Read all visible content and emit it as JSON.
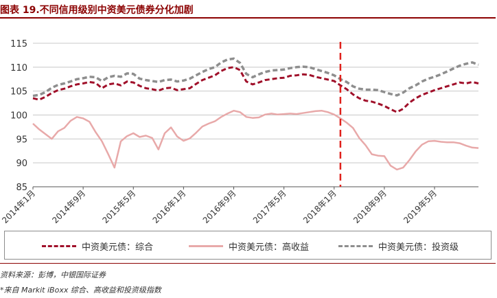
{
  "header": {
    "title": "图表 19.不同信用级别中资美元债券分化加剧"
  },
  "colors": {
    "composite": "#a0102a",
    "high_yield": "#e8a9a9",
    "investment_grade": "#8e8e8e",
    "marker": "#e0211c",
    "title": "#8b0000"
  },
  "chart_data": {
    "type": "line",
    "title": "",
    "xlabel": "",
    "ylabel": "",
    "ylim": [
      85,
      115
    ],
    "yticks": [
      85,
      90,
      95,
      100,
      105,
      110,
      115
    ],
    "xlim": [
      "2014-01",
      "2019-12"
    ],
    "xticks": [
      "2014年1月",
      "2014年9月",
      "2015年5月",
      "2016年1月",
      "2016年9月",
      "2017年5月",
      "2018年1月",
      "2018年9月",
      "2019年5月"
    ],
    "grid": "horizontal",
    "legend": "bottom",
    "vertical_marker": "2018-02",
    "series": [
      {
        "name": "中资美元债：综合",
        "key": "composite",
        "points": [
          [
            "2014-01",
            103.5
          ],
          [
            "2014-02",
            103.2
          ],
          [
            "2014-03",
            103.8
          ],
          [
            "2014-04",
            104.6
          ],
          [
            "2014-05",
            105.2
          ],
          [
            "2014-06",
            105.5
          ],
          [
            "2014-07",
            106.0
          ],
          [
            "2014-08",
            106.4
          ],
          [
            "2014-09",
            106.6
          ],
          [
            "2014-10",
            106.9
          ],
          [
            "2014-11",
            106.7
          ],
          [
            "2014-12",
            105.6
          ],
          [
            "2015-01",
            106.4
          ],
          [
            "2015-02",
            106.6
          ],
          [
            "2015-03",
            106.2
          ],
          [
            "2015-04",
            107.0
          ],
          [
            "2015-05",
            106.8
          ],
          [
            "2015-06",
            106.1
          ],
          [
            "2015-07",
            105.6
          ],
          [
            "2015-08",
            105.4
          ],
          [
            "2015-09",
            105.1
          ],
          [
            "2015-10",
            105.6
          ],
          [
            "2015-11",
            105.7
          ],
          [
            "2015-12",
            105.2
          ],
          [
            "2016-01",
            105.4
          ],
          [
            "2016-02",
            105.6
          ],
          [
            "2016-03",
            106.5
          ],
          [
            "2016-04",
            107.3
          ],
          [
            "2016-05",
            107.8
          ],
          [
            "2016-06",
            108.3
          ],
          [
            "2016-07",
            109.2
          ],
          [
            "2016-08",
            109.8
          ],
          [
            "2016-09",
            110.0
          ],
          [
            "2016-10",
            109.4
          ],
          [
            "2016-11",
            107.0
          ],
          [
            "2016-12",
            106.4
          ],
          [
            "2017-01",
            106.8
          ],
          [
            "2017-02",
            107.3
          ],
          [
            "2017-03",
            107.5
          ],
          [
            "2017-04",
            107.7
          ],
          [
            "2017-05",
            107.8
          ],
          [
            "2017-06",
            108.2
          ],
          [
            "2017-07",
            108.3
          ],
          [
            "2017-08",
            108.5
          ],
          [
            "2017-09",
            108.4
          ],
          [
            "2017-10",
            108.0
          ],
          [
            "2017-11",
            107.7
          ],
          [
            "2017-12",
            107.4
          ],
          [
            "2018-01",
            107.1
          ],
          [
            "2018-02",
            106.2
          ],
          [
            "2018-03",
            105.4
          ],
          [
            "2018-04",
            104.3
          ],
          [
            "2018-05",
            103.5
          ],
          [
            "2018-06",
            103.0
          ],
          [
            "2018-07",
            102.8
          ],
          [
            "2018-08",
            102.4
          ],
          [
            "2018-09",
            101.9
          ],
          [
            "2018-10",
            101.2
          ],
          [
            "2018-11",
            100.6
          ],
          [
            "2018-12",
            101.3
          ],
          [
            "2019-01",
            102.6
          ],
          [
            "2019-02",
            103.5
          ],
          [
            "2019-03",
            104.2
          ],
          [
            "2019-04",
            104.7
          ],
          [
            "2019-05",
            105.2
          ],
          [
            "2019-06",
            105.6
          ],
          [
            "2019-07",
            106.0
          ],
          [
            "2019-08",
            106.4
          ],
          [
            "2019-09",
            106.8
          ],
          [
            "2019-10",
            106.6
          ],
          [
            "2019-11",
            106.9
          ],
          [
            "2019-12",
            106.6
          ]
        ]
      },
      {
        "name": "中资美元债：高收益",
        "key": "high_yield",
        "points": [
          [
            "2014-01",
            98.2
          ],
          [
            "2014-02",
            97.0
          ],
          [
            "2014-03",
            96.0
          ],
          [
            "2014-04",
            95.0
          ],
          [
            "2014-05",
            96.6
          ],
          [
            "2014-06",
            97.3
          ],
          [
            "2014-07",
            98.8
          ],
          [
            "2014-08",
            99.6
          ],
          [
            "2014-09",
            99.3
          ],
          [
            "2014-10",
            98.6
          ],
          [
            "2014-11",
            96.4
          ],
          [
            "2014-12",
            94.5
          ],
          [
            "2015-01",
            91.8
          ],
          [
            "2015-02",
            89.0
          ],
          [
            "2015-03",
            94.5
          ],
          [
            "2015-04",
            95.6
          ],
          [
            "2015-05",
            96.2
          ],
          [
            "2015-06",
            95.4
          ],
          [
            "2015-07",
            95.7
          ],
          [
            "2015-08",
            95.2
          ],
          [
            "2015-09",
            92.8
          ],
          [
            "2015-10",
            96.2
          ],
          [
            "2015-11",
            97.4
          ],
          [
            "2015-12",
            95.5
          ],
          [
            "2016-01",
            94.6
          ],
          [
            "2016-02",
            95.1
          ],
          [
            "2016-03",
            96.3
          ],
          [
            "2016-04",
            97.6
          ],
          [
            "2016-05",
            98.2
          ],
          [
            "2016-06",
            98.7
          ],
          [
            "2016-07",
            99.6
          ],
          [
            "2016-08",
            100.3
          ],
          [
            "2016-09",
            100.9
          ],
          [
            "2016-10",
            100.6
          ],
          [
            "2016-11",
            99.6
          ],
          [
            "2016-12",
            99.4
          ],
          [
            "2017-01",
            99.5
          ],
          [
            "2017-02",
            100.1
          ],
          [
            "2017-03",
            100.3
          ],
          [
            "2017-04",
            100.1
          ],
          [
            "2017-05",
            100.2
          ],
          [
            "2017-06",
            100.3
          ],
          [
            "2017-07",
            100.2
          ],
          [
            "2017-08",
            100.4
          ],
          [
            "2017-09",
            100.6
          ],
          [
            "2017-10",
            100.8
          ],
          [
            "2017-11",
            100.9
          ],
          [
            "2017-12",
            100.6
          ],
          [
            "2018-01",
            100.1
          ],
          [
            "2018-02",
            99.3
          ],
          [
            "2018-03",
            98.4
          ],
          [
            "2018-04",
            97.3
          ],
          [
            "2018-05",
            95.2
          ],
          [
            "2018-06",
            93.7
          ],
          [
            "2018-07",
            91.8
          ],
          [
            "2018-08",
            91.5
          ],
          [
            "2018-09",
            91.4
          ],
          [
            "2018-10",
            89.4
          ],
          [
            "2018-11",
            88.6
          ],
          [
            "2018-12",
            89.0
          ],
          [
            "2019-01",
            90.6
          ],
          [
            "2019-02",
            92.4
          ],
          [
            "2019-03",
            93.8
          ],
          [
            "2019-04",
            94.5
          ],
          [
            "2019-05",
            94.6
          ],
          [
            "2019-06",
            94.4
          ],
          [
            "2019-07",
            94.3
          ],
          [
            "2019-08",
            94.3
          ],
          [
            "2019-09",
            94.1
          ],
          [
            "2019-10",
            93.6
          ],
          [
            "2019-11",
            93.2
          ],
          [
            "2019-12",
            93.1
          ]
        ]
      },
      {
        "name": "中资美元债：投资级",
        "key": "investment_grade",
        "points": [
          [
            "2014-01",
            104.0
          ],
          [
            "2014-02",
            104.2
          ],
          [
            "2014-03",
            104.8
          ],
          [
            "2014-04",
            105.7
          ],
          [
            "2014-05",
            106.3
          ],
          [
            "2014-06",
            106.6
          ],
          [
            "2014-07",
            107.0
          ],
          [
            "2014-08",
            107.5
          ],
          [
            "2014-09",
            107.7
          ],
          [
            "2014-10",
            108.0
          ],
          [
            "2014-11",
            107.9
          ],
          [
            "2014-12",
            107.1
          ],
          [
            "2015-01",
            107.9
          ],
          [
            "2015-02",
            108.2
          ],
          [
            "2015-03",
            108.0
          ],
          [
            "2015-04",
            108.7
          ],
          [
            "2015-05",
            108.6
          ],
          [
            "2015-06",
            107.6
          ],
          [
            "2015-07",
            107.3
          ],
          [
            "2015-08",
            107.1
          ],
          [
            "2015-09",
            106.9
          ],
          [
            "2015-10",
            107.3
          ],
          [
            "2015-11",
            107.4
          ],
          [
            "2015-12",
            107.0
          ],
          [
            "2016-01",
            107.2
          ],
          [
            "2016-02",
            107.6
          ],
          [
            "2016-03",
            108.3
          ],
          [
            "2016-04",
            109.0
          ],
          [
            "2016-05",
            109.6
          ],
          [
            "2016-06",
            110.0
          ],
          [
            "2016-07",
            111.0
          ],
          [
            "2016-08",
            111.6
          ],
          [
            "2016-09",
            111.8
          ],
          [
            "2016-10",
            110.9
          ],
          [
            "2016-11",
            108.6
          ],
          [
            "2016-12",
            107.9
          ],
          [
            "2017-01",
            108.5
          ],
          [
            "2017-02",
            109.0
          ],
          [
            "2017-03",
            109.3
          ],
          [
            "2017-04",
            109.4
          ],
          [
            "2017-05",
            109.5
          ],
          [
            "2017-06",
            109.8
          ],
          [
            "2017-07",
            110.0
          ],
          [
            "2017-08",
            110.1
          ],
          [
            "2017-09",
            110.0
          ],
          [
            "2017-10",
            109.6
          ],
          [
            "2017-11",
            109.2
          ],
          [
            "2017-12",
            108.8
          ],
          [
            "2018-01",
            108.3
          ],
          [
            "2018-02",
            107.5
          ],
          [
            "2018-03",
            106.9
          ],
          [
            "2018-04",
            106.0
          ],
          [
            "2018-05",
            105.5
          ],
          [
            "2018-06",
            105.3
          ],
          [
            "2018-07",
            105.3
          ],
          [
            "2018-08",
            105.2
          ],
          [
            "2018-09",
            104.8
          ],
          [
            "2018-10",
            104.4
          ],
          [
            "2018-11",
            104.1
          ],
          [
            "2018-12",
            104.7
          ],
          [
            "2019-01",
            105.6
          ],
          [
            "2019-02",
            106.2
          ],
          [
            "2019-03",
            107.0
          ],
          [
            "2019-04",
            107.6
          ],
          [
            "2019-05",
            108.0
          ],
          [
            "2019-06",
            108.5
          ],
          [
            "2019-07",
            109.1
          ],
          [
            "2019-08",
            109.7
          ],
          [
            "2019-09",
            110.3
          ],
          [
            "2019-10",
            110.7
          ],
          [
            "2019-11",
            111.0
          ],
          [
            "2019-12",
            110.5
          ]
        ]
      }
    ]
  },
  "footer": {
    "source": "资料来源：彭博，中银国际证券",
    "note": "*来自 Markit iBoxx 综合、高收益和投资级指数"
  }
}
